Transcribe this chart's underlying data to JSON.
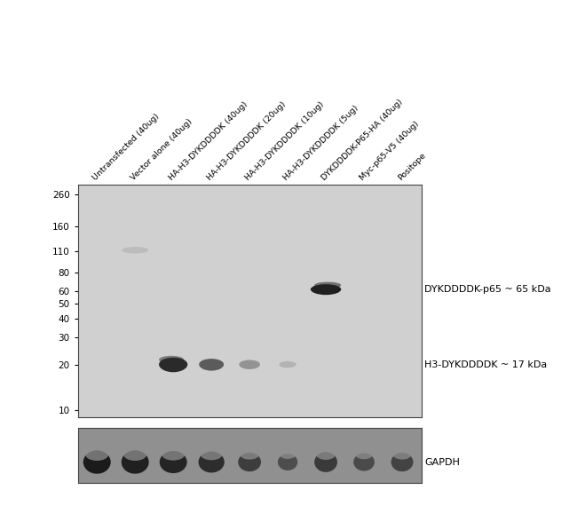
{
  "lane_labels": [
    "Untransfected (40ug)",
    "Vector alone (40ug)",
    "HA-H3-DYKDDDDK (40ug)",
    "HA-H3-DYKDDDDK (20ug)",
    "HA-H3-DYKDDDDK (10ug)",
    "HA-H3-DYKDDDDK (5ug)",
    "DYKDDDDK-P65-HA (40ug)",
    "Myc-p65-V5 (40ug)",
    "Positope"
  ],
  "mw_markers": [
    260,
    160,
    110,
    80,
    60,
    50,
    40,
    30,
    20,
    10
  ],
  "annotation_p65": "DYKDDDDK-p65 ~ 65 kDa",
  "annotation_h3": "H3-DYKDDDDK ~ 17 kDa",
  "annotation_gapdh": "GAPDH",
  "bg_color_main": "#d0d0d0",
  "bg_color_gapdh": "#909090",
  "band_color_dark": "#1a1a1a",
  "band_color_medium": "#555555",
  "band_color_faint": "#999999",
  "n_lanes": 9,
  "annotation_fontsize": 8,
  "tick_fontsize": 7.5,
  "label_fontsize": 6.8
}
